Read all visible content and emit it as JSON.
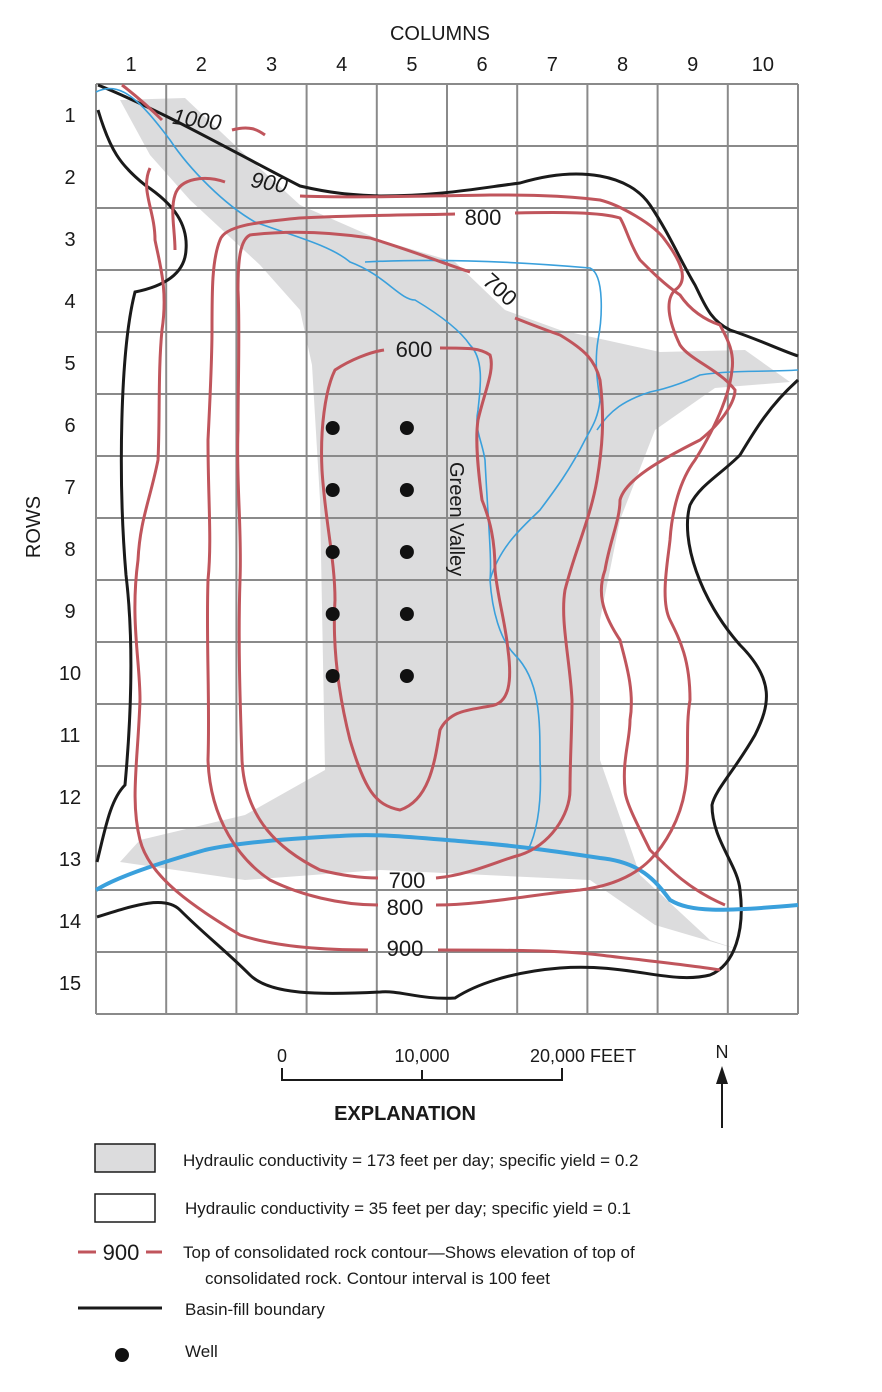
{
  "figure": {
    "columns_title": "COLUMNS",
    "rows_title": "ROWS",
    "column_labels": [
      "1",
      "2",
      "3",
      "4",
      "5",
      "6",
      "7",
      "8",
      "9",
      "10"
    ],
    "row_labels": [
      "1",
      "2",
      "3",
      "4",
      "5",
      "6",
      "7",
      "8",
      "9",
      "10",
      "11",
      "12",
      "13",
      "14",
      "15"
    ],
    "river_label": "Green Valley",
    "contour_labels": [
      "1000",
      "900",
      "800",
      "700",
      "600",
      "700",
      "800",
      "900"
    ],
    "wells": [
      [
        4,
        6
      ],
      [
        5,
        6
      ],
      [
        4,
        7
      ],
      [
        5,
        7
      ],
      [
        4,
        8
      ],
      [
        5,
        8
      ],
      [
        4,
        9
      ],
      [
        5,
        9
      ],
      [
        4,
        10
      ],
      [
        5,
        10
      ]
    ]
  },
  "scale": {
    "labels": [
      "0",
      "10,000",
      "20,000 FEET"
    ],
    "north_label": "N"
  },
  "explanation": {
    "title": "EXPLANATION",
    "high_k": "Hydraulic conductivity = 173 feet per day; specific yield = 0.2",
    "low_k": "Hydraulic conductivity = 35 feet per day; specific yield = 0.1",
    "contour_sample": "900",
    "contour_line1": "Top of consolidated rock contour—Shows elevation of top of",
    "contour_line2": "consolidated rock. Contour interval is 100 feet",
    "boundary": "Basin-fill boundary",
    "well": "Well"
  },
  "colors": {
    "grid": "#8a8a8a",
    "shade": "#dcdcdd",
    "contour": "#c0555c",
    "stream": "#3aa0dc",
    "boundary": "#1a1a1a"
  }
}
